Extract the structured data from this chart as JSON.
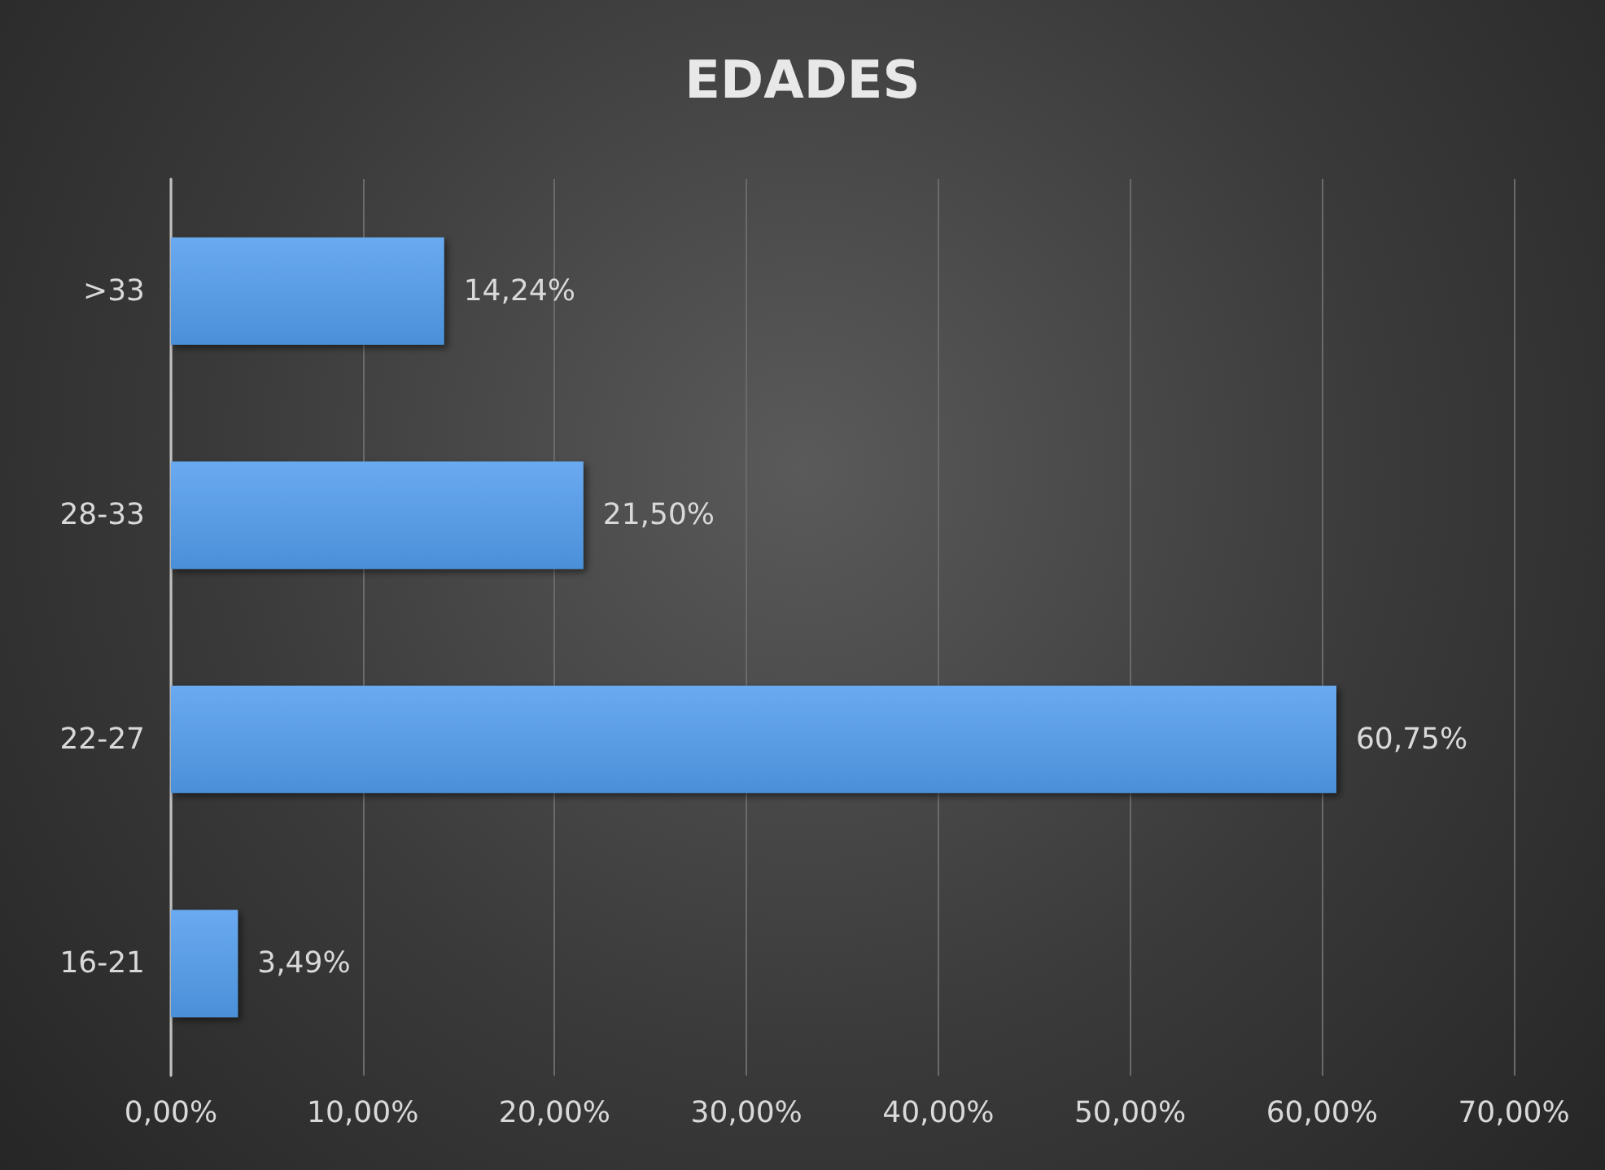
{
  "chart_data": {
    "type": "bar",
    "title": "EDADES",
    "orientation": "horizontal",
    "categories": [
      ">33",
      "28-33",
      "22-27",
      "16-21"
    ],
    "values": [
      14.24,
      21.5,
      60.75,
      3.49
    ],
    "color": "#4a90d9",
    "value_labels": [
      "14,24%",
      "21,50%",
      "60,75%",
      "3,49%"
    ],
    "xlim": [
      0,
      70
    ],
    "xticks": [
      {
        "value": 0,
        "label": "0,00%"
      },
      {
        "value": 10,
        "label": "10,00%"
      },
      {
        "value": 20,
        "label": "20,00%"
      },
      {
        "value": 30,
        "label": "30,00%"
      },
      {
        "value": 40,
        "label": "40,00%"
      },
      {
        "value": 50,
        "label": "50,00%"
      },
      {
        "value": 60,
        "label": "60,00%"
      },
      {
        "value": 70,
        "label": "70,00%"
      }
    ],
    "grid": "x"
  }
}
